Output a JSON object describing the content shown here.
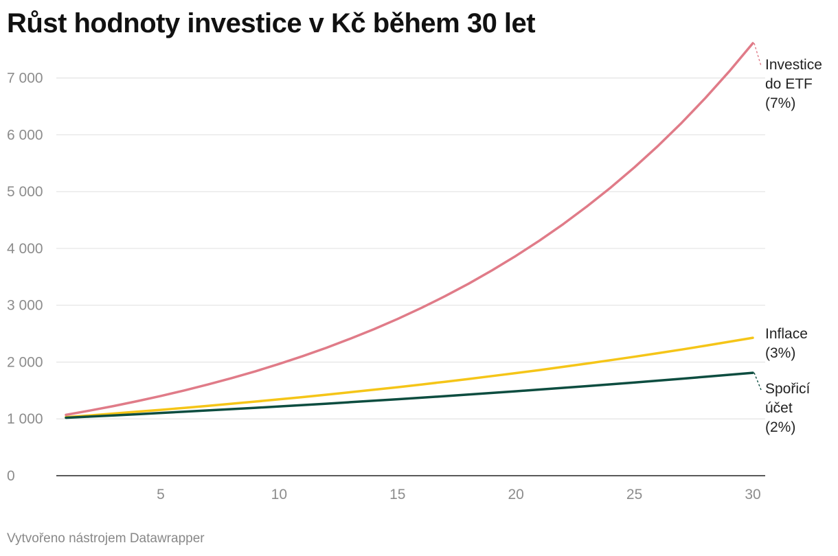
{
  "page": {
    "title": "Růst hodnoty investice v Kč během 30 let",
    "source": "Vytvořeno nástrojem Datawrapper"
  },
  "chart_data": {
    "type": "line",
    "title": "Růst hodnoty investice v Kč během 30 let",
    "xlabel": "",
    "ylabel": "",
    "xlim": [
      1,
      30
    ],
    "ylim": [
      0,
      7600
    ],
    "x_ticks": [
      5,
      10,
      15,
      20,
      25,
      30
    ],
    "x_tick_labels": [
      "5",
      "10",
      "15",
      "20",
      "25",
      "30"
    ],
    "y_ticks": [
      0,
      1000,
      2000,
      3000,
      4000,
      5000,
      6000,
      7000
    ],
    "y_tick_labels": [
      "0",
      "1 000",
      "2 000",
      "3 000",
      "4 000",
      "5 000",
      "6 000",
      "7 000"
    ],
    "grid": "horizontal",
    "legend": "direct labels at right end of lines",
    "x": [
      1,
      2,
      3,
      4,
      5,
      6,
      7,
      8,
      9,
      10,
      11,
      12,
      13,
      14,
      15,
      16,
      17,
      18,
      19,
      20,
      21,
      22,
      23,
      24,
      25,
      26,
      27,
      28,
      29,
      30
    ],
    "series": [
      {
        "name": "Investice do ETF (7%)",
        "label_lines": [
          "Investice",
          "do ETF",
          "(7%)"
        ],
        "color": "#e07b88",
        "values": [
          1070,
          1145,
          1225,
          1311,
          1403,
          1501,
          1606,
          1718,
          1838,
          1967,
          2105,
          2252,
          2410,
          2579,
          2759,
          2952,
          3159,
          3380,
          3617,
          3870,
          4141,
          4430,
          4741,
          5072,
          5427,
          5807,
          6214,
          6649,
          7114,
          7612
        ]
      },
      {
        "name": "Inflace (3%)",
        "label_lines": [
          "Inflace",
          "(3%)"
        ],
        "color": "#f5c518",
        "values": [
          1030,
          1061,
          1093,
          1126,
          1159,
          1194,
          1230,
          1267,
          1305,
          1344,
          1384,
          1426,
          1469,
          1513,
          1558,
          1605,
          1653,
          1702,
          1754,
          1806,
          1860,
          1916,
          1974,
          2033,
          2094,
          2157,
          2221,
          2288,
          2357,
          2427
        ]
      },
      {
        "name": "Spořicí účet (2%)",
        "label_lines": [
          "Spořicí",
          "účet",
          "(2%)"
        ],
        "color": "#0d4d40",
        "values": [
          1020,
          1040,
          1061,
          1082,
          1104,
          1126,
          1149,
          1172,
          1195,
          1219,
          1243,
          1268,
          1294,
          1319,
          1346,
          1373,
          1400,
          1428,
          1457,
          1486,
          1516,
          1546,
          1577,
          1608,
          1641,
          1673,
          1707,
          1741,
          1776,
          1811
        ]
      }
    ]
  }
}
